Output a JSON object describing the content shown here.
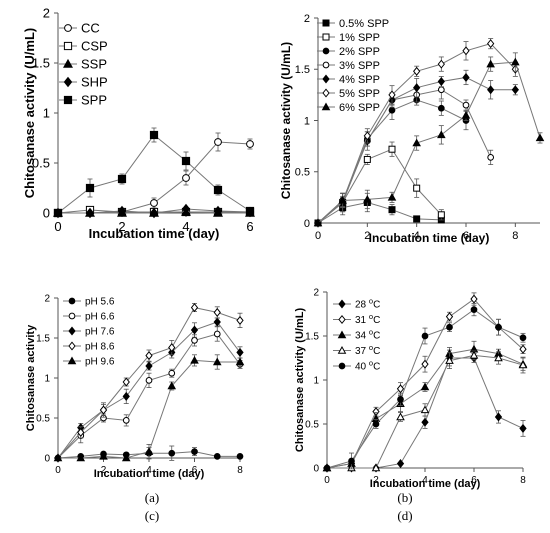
{
  "chart_data": [
    {
      "type": "line",
      "panel_label": "(a)",
      "xlabel": "Incubation time (day)",
      "ylabel": "Chitosanase activity (U/mL)",
      "xlim": [
        0,
        6
      ],
      "ylim": [
        0,
        2
      ],
      "xticks": [
        0,
        2,
        4,
        6
      ],
      "yticks": [
        0,
        0.5,
        1,
        1.5,
        2
      ],
      "ytick_labels": [
        "0",
        "0.5",
        "1",
        "1.5",
        "2"
      ],
      "legend_position": "top-left",
      "x": [
        0,
        1,
        2,
        3,
        4,
        5,
        6
      ],
      "series": [
        {
          "name": "CC",
          "marker": "circle-open",
          "values": [
            0,
            0,
            0.01,
            0.1,
            0.35,
            0.71,
            0.69
          ]
        },
        {
          "name": "CSP",
          "marker": "square-open",
          "values": [
            0,
            0.03,
            0.01,
            0.01,
            0.01,
            0.01,
            0.01
          ]
        },
        {
          "name": "SSP",
          "marker": "triangle-filled",
          "values": [
            0,
            0,
            0,
            0,
            0.01,
            0,
            0
          ]
        },
        {
          "name": "SHP",
          "marker": "diamond-filled",
          "values": [
            0,
            0,
            0.02,
            0,
            0.04,
            0.02,
            0.01
          ]
        },
        {
          "name": "SPP",
          "marker": "square-filled",
          "values": [
            0,
            0.25,
            0.34,
            0.78,
            0.52,
            0.23,
            0.02
          ]
        }
      ]
    },
    {
      "type": "line",
      "panel_label": "(b)",
      "xlabel": "Incubation time (day)",
      "ylabel": "Chitosanase activity (U/mL)",
      "xlim": [
        0,
        9
      ],
      "ylim": [
        0,
        2
      ],
      "xticks": [
        0,
        2,
        4,
        6,
        8
      ],
      "yticks": [
        0,
        0.5,
        1,
        1.5,
        2
      ],
      "ytick_labels": [
        "0",
        "0.5",
        "1",
        "1.5",
        "2"
      ],
      "legend_position": "top-left",
      "series": [
        {
          "name": "0.5% SPP",
          "marker": "square-filled",
          "x": [
            0,
            1,
            2,
            3,
            4,
            5
          ],
          "values": [
            0,
            0.15,
            0.2,
            0.13,
            0.04,
            0.03
          ]
        },
        {
          "name": "1% SPP",
          "marker": "square-open",
          "x": [
            0,
            1,
            2,
            3,
            4,
            5
          ],
          "values": [
            0,
            0.2,
            0.62,
            0.72,
            0.34,
            0.08
          ]
        },
        {
          "name": "2% SPP",
          "marker": "circle-filled",
          "x": [
            0,
            1,
            2,
            3,
            4,
            5,
            6
          ],
          "values": [
            0,
            0.2,
            0.82,
            1.1,
            1.2,
            1.12,
            1.0
          ]
        },
        {
          "name": "3% SPP",
          "marker": "circle-open",
          "x": [
            0,
            1,
            2,
            3,
            4,
            5,
            6,
            7
          ],
          "values": [
            0,
            0.22,
            0.8,
            1.2,
            1.25,
            1.3,
            1.15,
            0.64
          ]
        },
        {
          "name": "4% SPP",
          "marker": "diamond-filled",
          "x": [
            0,
            1,
            2,
            3,
            4,
            5,
            6,
            7,
            8
          ],
          "values": [
            0,
            0.2,
            0.8,
            1.2,
            1.32,
            1.38,
            1.42,
            1.3,
            1.3
          ]
        },
        {
          "name": "5% SPP",
          "marker": "diamond-open",
          "x": [
            0,
            1,
            2,
            3,
            4,
            5,
            6,
            7,
            8
          ],
          "values": [
            0,
            0.21,
            0.85,
            1.25,
            1.48,
            1.55,
            1.68,
            1.75,
            1.5
          ]
        },
        {
          "name": "6% SPP",
          "marker": "triangle-filled",
          "x": [
            0,
            1,
            2,
            3,
            4,
            5,
            6,
            7,
            8,
            9
          ],
          "values": [
            0,
            0.22,
            0.23,
            0.25,
            0.78,
            0.86,
            1.05,
            1.55,
            1.57,
            0.83
          ]
        }
      ]
    },
    {
      "type": "line",
      "panel_label": "(c)",
      "xlabel": "Incubation time (day)",
      "ylabel": "Chitosanase activity",
      "xlim": [
        0,
        8
      ],
      "ylim": [
        0,
        2
      ],
      "xticks": [
        0,
        2,
        4,
        6,
        8
      ],
      "yticks": [
        0,
        0.5,
        1,
        1.5,
        2
      ],
      "ytick_labels": [
        "0",
        "0.5",
        "1",
        "1.5",
        "2"
      ],
      "legend_position": "top-left",
      "x": [
        0,
        1,
        2,
        3,
        4,
        5,
        6,
        7,
        8
      ],
      "series": [
        {
          "name": "pH 5.6",
          "marker": "circle-filled",
          "values": [
            0,
            0.02,
            0.05,
            0.04,
            0.06,
            0.06,
            0.08,
            0.02,
            0.02
          ]
        },
        {
          "name": "pH 6.6",
          "marker": "circle-open",
          "values": [
            0,
            0.28,
            0.5,
            0.47,
            0.97,
            1.06,
            1.47,
            1.55,
            1.17
          ]
        },
        {
          "name": "pH 7.6",
          "marker": "diamond-filled",
          "values": [
            0,
            0.38,
            0.6,
            0.77,
            1.15,
            1.32,
            1.6,
            1.7,
            1.32
          ]
        },
        {
          "name": "pH 8.6",
          "marker": "diamond-open",
          "values": [
            0,
            0.32,
            0.6,
            0.95,
            1.28,
            1.38,
            1.88,
            1.82,
            1.72
          ]
        },
        {
          "name": "pH 9.6",
          "marker": "triangle-filled",
          "values": [
            0,
            0,
            0.02,
            0,
            0.08,
            0.9,
            1.22,
            1.2,
            1.2
          ]
        }
      ]
    },
    {
      "type": "line",
      "panel_label": "(d)",
      "xlabel": "Incubation time (day)",
      "ylabel": "Chitosanase activity (U/mL)",
      "xlim": [
        0,
        8
      ],
      "ylim": [
        0,
        2
      ],
      "xticks": [
        0,
        2,
        4,
        6,
        8
      ],
      "yticks": [
        0,
        0.5,
        1,
        1.5,
        2
      ],
      "ytick_labels": [
        "0",
        "0.5",
        "1",
        "1.5",
        "2"
      ],
      "legend_position": "top-left",
      "x": [
        0,
        1,
        2,
        3,
        4,
        5,
        6,
        7,
        8
      ],
      "series": [
        {
          "name": "28 oC",
          "label_num": "28 ",
          "label_sup": "o",
          "label_unit": "C",
          "marker": "diamond-filled",
          "values": [
            0,
            0,
            0,
            0.05,
            0.52,
            1.25,
            1.25,
            0.58,
            0.45
          ]
        },
        {
          "name": "31 oC",
          "label_num": "31 ",
          "label_sup": "o",
          "label_unit": "C",
          "marker": "diamond-open",
          "values": [
            0,
            0.05,
            0.64,
            0.9,
            1.18,
            1.72,
            1.92,
            1.6,
            1.35
          ]
        },
        {
          "name": "34 oC",
          "label_num": "34 ",
          "label_sup": "o",
          "label_unit": "C",
          "marker": "triangle-filled",
          "values": [
            0,
            0.05,
            0.56,
            0.73,
            0.92,
            1.3,
            1.35,
            1.3,
            1.18
          ]
        },
        {
          "name": "37 oC",
          "label_num": "37 ",
          "label_sup": "o",
          "label_unit": "C",
          "marker": "triangle-open",
          "values": [
            0,
            0,
            0,
            0.58,
            0.66,
            1.22,
            1.28,
            1.25,
            1.17
          ]
        },
        {
          "name": "40 oC",
          "label_num": "40 ",
          "label_sup": "o",
          "label_unit": "C",
          "marker": "circle-filled",
          "values": [
            0,
            0.08,
            0.5,
            0.78,
            1.5,
            1.6,
            1.8,
            1.6,
            1.48
          ]
        }
      ]
    }
  ]
}
